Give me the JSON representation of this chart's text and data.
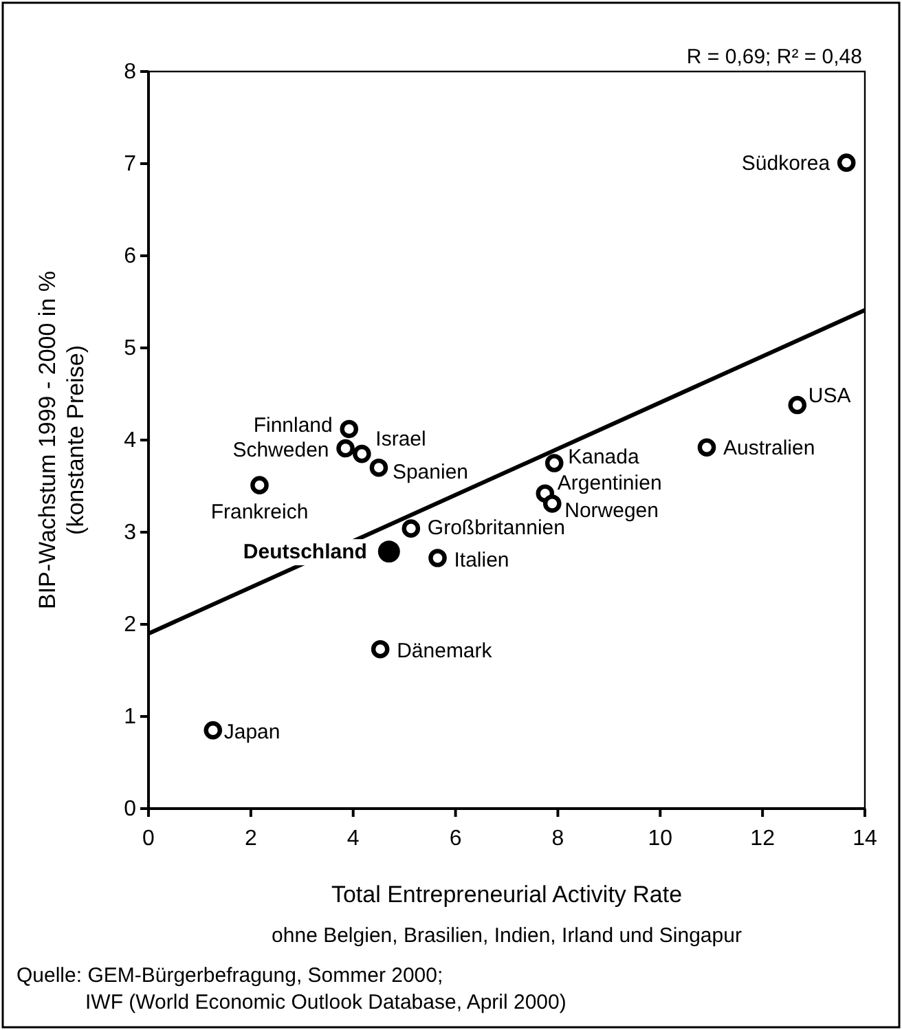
{
  "chart_data": {
    "type": "scatter",
    "xlabel": "Total Entrepreneurial Activity Rate",
    "ylabel": "BIP-Wachstum 1999 - 2000 in %\n(konstante Preise)",
    "xlim": [
      0,
      14
    ],
    "xticks": [
      0,
      2,
      4,
      6,
      8,
      10,
      12,
      14
    ],
    "ylim": [
      0,
      8
    ],
    "yticks": [
      0,
      1,
      2,
      3,
      4,
      5,
      6,
      7,
      8
    ],
    "grid": false,
    "marker": "circle",
    "series": [
      {
        "color": "#000000",
        "x": [
          1.26,
          4.53,
          3.92,
          3.85,
          4.17,
          4.5,
          2.17,
          5.13,
          5.65,
          7.93,
          7.75,
          7.89,
          13.64,
          12.68,
          10.91
        ],
        "values": [
          0.85,
          1.73,
          4.12,
          3.91,
          3.85,
          3.7,
          3.51,
          3.04,
          2.72,
          3.75,
          3.42,
          3.31,
          7.01,
          4.38,
          3.92
        ]
      },
      {
        "color": "#000000",
        "x": [
          4.7
        ],
        "values": [
          2.79
        ]
      },
      {
        "type": "line",
        "marker": "none",
        "color": "#000000",
        "x": [
          0,
          14
        ],
        "values": [
          1.9,
          5.41
        ]
      }
    ],
    "annotations": [
      {
        "text": "Japan",
        "x": 1.26,
        "y": 0.85
      },
      {
        "text": "Dänemark",
        "x": 4.53,
        "y": 1.73
      },
      {
        "text": "Finnland",
        "x": 3.92,
        "y": 4.12
      },
      {
        "text": "Schweden",
        "x": 3.85,
        "y": 3.91
      },
      {
        "text": "Israel",
        "x": 4.17,
        "y": 3.85
      },
      {
        "text": "Spanien",
        "x": 4.5,
        "y": 3.7
      },
      {
        "text": "Frankreich",
        "x": 2.17,
        "y": 3.51
      },
      {
        "text": "Großbritannien",
        "x": 5.13,
        "y": 3.04
      },
      {
        "text": "Italien",
        "x": 5.65,
        "y": 2.72
      },
      {
        "text": "Kanada",
        "x": 7.93,
        "y": 3.75
      },
      {
        "text": "Argentinien",
        "x": 7.75,
        "y": 3.42
      },
      {
        "text": "Norwegen",
        "x": 7.89,
        "y": 3.31
      },
      {
        "text": "Südkorea",
        "x": 13.64,
        "y": 7.01
      },
      {
        "text": "USA",
        "x": 12.68,
        "y": 4.38
      },
      {
        "text": "Australien",
        "x": 10.91,
        "y": 3.92
      },
      {
        "text": "Deutschland",
        "x": 4.7,
        "y": 2.79
      },
      "R = 0,69; R² = 0,48",
      "ohne Belgien, Brasilien, Indien, Irland und Singapur",
      "Quelle: GEM-Bürgerbefragung, Sommer 2000;\nIWF (World Economic Outlook Database, April 2000)"
    ]
  }
}
